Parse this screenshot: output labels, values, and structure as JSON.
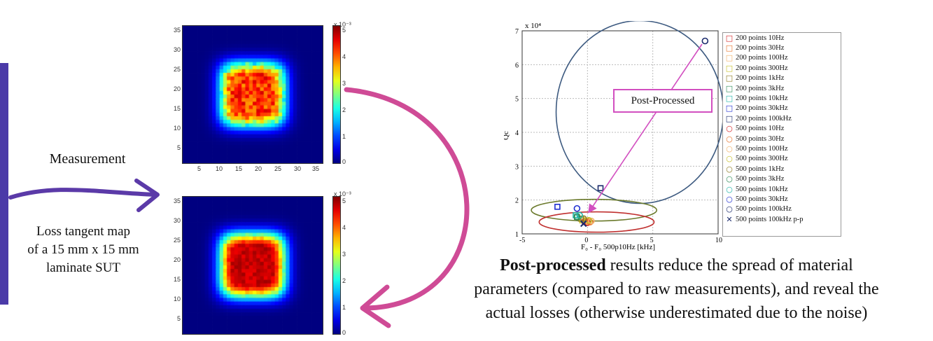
{
  "left_panel": {
    "measurement_label": "Measurement",
    "loss_map_lines": [
      "Loss tangent map",
      "of a 15 mm x 15 mm",
      "laminate SUT"
    ]
  },
  "heatmaps": {
    "top": {
      "x_ticks": [
        "5",
        "10",
        "15",
        "20",
        "25",
        "30",
        "35"
      ],
      "y_ticks": [
        "35",
        "30",
        "25",
        "20",
        "15",
        "10",
        "5"
      ],
      "colorbar_ticks": [
        "5",
        "4",
        "3",
        "2",
        "1",
        "0"
      ],
      "colorbar_scale": "x 10⁻³"
    },
    "bottom": {
      "y_ticks": [
        "35",
        "30",
        "25",
        "20",
        "15",
        "10",
        "5"
      ],
      "colorbar_ticks": [
        "5",
        "4",
        "3",
        "2",
        "1",
        "0"
      ],
      "colorbar_scale": "x 10⁻³"
    }
  },
  "scatter": {
    "y_scale": "x 10⁴",
    "ylabel": "Qc",
    "xlabel": "F₀ - F₀ 500p10Hz [kHz]",
    "annotation": "Post-Processed"
  },
  "caption": {
    "bold": "Post-processed",
    "rest_line1": " results reduce the spread of material",
    "line2": "parameters (compared to raw measurements), and reveal the",
    "line3": "actual losses (otherwise underestimated due to the noise)"
  },
  "chart_data": {
    "type": "scatter",
    "xlim": [
      -5,
      10
    ],
    "ylim": [
      1,
      7
    ],
    "x_ticks": [
      "-5",
      "0",
      "5",
      "10"
    ],
    "y_ticks": [
      "1",
      "2",
      "3",
      "4",
      "5",
      "6",
      "7"
    ],
    "grid": true,
    "legend_position": "right",
    "series": [
      {
        "name": "200 points 10Hz",
        "marker": "square",
        "color": "#d62728",
        "points": [
          [
            -0.2,
            1.35
          ]
        ]
      },
      {
        "name": "200 points 30Hz",
        "marker": "square",
        "color": "#e8742a",
        "points": [
          [
            -0.1,
            1.38
          ]
        ]
      },
      {
        "name": "200 points 100Hz",
        "marker": "square",
        "color": "#f2b36a",
        "points": [
          [
            0.1,
            1.35
          ]
        ]
      },
      {
        "name": "200 points 300Hz",
        "marker": "square",
        "color": "#c8c02a",
        "points": [
          [
            -0.4,
            1.4
          ]
        ]
      },
      {
        "name": "200 points 1kHz",
        "marker": "square",
        "color": "#8c7a20",
        "points": [
          [
            -0.5,
            1.45
          ]
        ]
      },
      {
        "name": "200 points 3kHz",
        "marker": "square",
        "color": "#2e8b57",
        "points": [
          [
            -0.8,
            1.5
          ]
        ]
      },
      {
        "name": "200 points 10kHz",
        "marker": "square",
        "color": "#22b5a8",
        "points": [
          [
            -0.9,
            1.55
          ]
        ]
      },
      {
        "name": "200 points 30kHz",
        "marker": "square",
        "color": "#1f2fd1",
        "points": [
          [
            -2.3,
            1.8
          ]
        ]
      },
      {
        "name": "200 points 100kHz",
        "marker": "square",
        "color": "#1a2a6c",
        "points": [
          [
            1.0,
            2.35
          ]
        ]
      },
      {
        "name": "500 points 10Hz",
        "marker": "circle",
        "color": "#d62728",
        "points": [
          [
            0.0,
            1.33
          ]
        ]
      },
      {
        "name": "500 points 30Hz",
        "marker": "circle",
        "color": "#e8742a",
        "points": [
          [
            0.2,
            1.35
          ]
        ]
      },
      {
        "name": "500 points 100Hz",
        "marker": "circle",
        "color": "#f2b36a",
        "points": [
          [
            0.3,
            1.38
          ]
        ]
      },
      {
        "name": "500 points 300Hz",
        "marker": "circle",
        "color": "#c8c02a",
        "points": [
          [
            0.1,
            1.4
          ]
        ]
      },
      {
        "name": "500 points 1kHz",
        "marker": "circle",
        "color": "#8c7a20",
        "points": [
          [
            -0.3,
            1.45
          ]
        ]
      },
      {
        "name": "500 points 3kHz",
        "marker": "circle",
        "color": "#2e8b57",
        "points": [
          [
            -0.8,
            1.5
          ]
        ]
      },
      {
        "name": "500 points 10kHz",
        "marker": "circle",
        "color": "#22b5a8",
        "points": [
          [
            -0.6,
            1.55
          ]
        ]
      },
      {
        "name": "500 points 30kHz",
        "marker": "circle",
        "color": "#1f2fd1",
        "points": [
          [
            -0.8,
            1.75
          ]
        ]
      },
      {
        "name": "500 points 100kHz",
        "marker": "circle",
        "color": "#1a2a6c",
        "points": [
          [
            9.0,
            6.7
          ]
        ]
      },
      {
        "name": "500 points 100kHz p-p",
        "marker": "x",
        "color": "#1a2a6c",
        "points": [
          [
            -0.3,
            1.3
          ]
        ]
      }
    ],
    "ellipses": [
      {
        "color": "#3d5a80",
        "cx": 4.0,
        "cy": 4.6,
        "rx": 6.4,
        "ry": 2.7
      },
      {
        "color": "#6b7a2c",
        "cx": 0.5,
        "cy": 1.7,
        "rx": 4.8,
        "ry": 0.32
      },
      {
        "color": "#c0302f",
        "cx": 0.7,
        "cy": 1.35,
        "rx": 4.4,
        "ry": 0.3
      }
    ]
  }
}
